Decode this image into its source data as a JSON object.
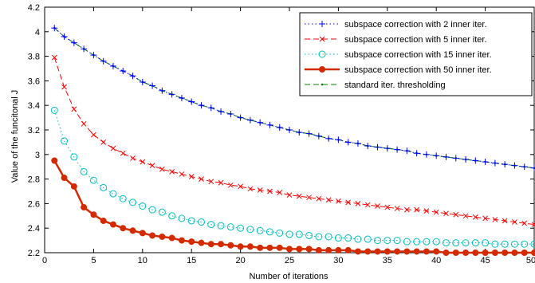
{
  "chart_data": {
    "type": "line",
    "xlabel": "Number of iterations",
    "ylabel": "Value of the funcitonal J",
    "xlim": [
      0,
      50
    ],
    "ylim": [
      2.2,
      4.2
    ],
    "xticks": [
      0,
      5,
      10,
      15,
      20,
      25,
      30,
      35,
      40,
      45,
      50
    ],
    "yticks": [
      2.2,
      2.4,
      2.6,
      2.8,
      3,
      3.2,
      3.4,
      3.6,
      3.8,
      4,
      4.2
    ],
    "grid": false,
    "legend_position": "top-right",
    "x": [
      1,
      2,
      3,
      4,
      5,
      6,
      7,
      8,
      9,
      10,
      11,
      12,
      13,
      14,
      15,
      16,
      17,
      18,
      19,
      20,
      21,
      22,
      23,
      24,
      25,
      26,
      27,
      28,
      29,
      30,
      31,
      32,
      33,
      34,
      35,
      36,
      37,
      38,
      39,
      40,
      41,
      42,
      43,
      44,
      45,
      46,
      47,
      48,
      49,
      50
    ],
    "series": [
      {
        "name": "subspace correction with 2 inner iter.",
        "color": "#0000ff",
        "line_style": "dotted",
        "marker": "plus",
        "values": [
          4.03,
          3.96,
          3.91,
          3.86,
          3.81,
          3.76,
          3.72,
          3.68,
          3.64,
          3.59,
          3.56,
          3.52,
          3.49,
          3.46,
          3.43,
          3.4,
          3.38,
          3.35,
          3.33,
          3.3,
          3.28,
          3.26,
          3.24,
          3.22,
          3.2,
          3.18,
          3.17,
          3.15,
          3.13,
          3.12,
          3.1,
          3.09,
          3.07,
          3.06,
          3.05,
          3.04,
          3.03,
          3.01,
          3.0,
          2.99,
          2.98,
          2.97,
          2.96,
          2.95,
          2.94,
          2.93,
          2.92,
          2.91,
          2.9,
          2.89
        ]
      },
      {
        "name": "subspace correction with 5 inner iter.",
        "color": "#ff0000",
        "line_style": "dashed",
        "marker": "x",
        "values": [
          3.79,
          3.55,
          3.37,
          3.25,
          3.16,
          3.1,
          3.05,
          3.01,
          2.97,
          2.94,
          2.91,
          2.88,
          2.86,
          2.84,
          2.82,
          2.8,
          2.78,
          2.77,
          2.75,
          2.74,
          2.72,
          2.71,
          2.7,
          2.69,
          2.67,
          2.66,
          2.65,
          2.64,
          2.63,
          2.62,
          2.61,
          2.6,
          2.59,
          2.58,
          2.57,
          2.56,
          2.55,
          2.55,
          2.54,
          2.53,
          2.52,
          2.51,
          2.5,
          2.49,
          2.48,
          2.47,
          2.46,
          2.45,
          2.44,
          2.43
        ]
      },
      {
        "name": "subspace correction with 15 inner iter.",
        "color": "#00bfbf",
        "line_style": "dotted",
        "marker": "circle",
        "values": [
          3.36,
          3.11,
          2.98,
          2.86,
          2.79,
          2.73,
          2.68,
          2.64,
          2.61,
          2.58,
          2.55,
          2.53,
          2.5,
          2.48,
          2.46,
          2.45,
          2.43,
          2.42,
          2.41,
          2.4,
          2.39,
          2.38,
          2.37,
          2.36,
          2.35,
          2.35,
          2.34,
          2.33,
          2.33,
          2.32,
          2.32,
          2.31,
          2.31,
          2.3,
          2.3,
          2.3,
          2.29,
          2.29,
          2.29,
          2.29,
          2.28,
          2.28,
          2.28,
          2.28,
          2.28,
          2.27,
          2.27,
          2.27,
          2.27,
          2.27
        ]
      },
      {
        "name": "subspace correction with 50 inner iter.",
        "color": "#d42a00",
        "line_style": "solid",
        "marker": "filled-circle",
        "values": [
          2.95,
          2.81,
          2.74,
          2.57,
          2.51,
          2.46,
          2.43,
          2.4,
          2.38,
          2.36,
          2.34,
          2.33,
          2.32,
          2.3,
          2.29,
          2.28,
          2.27,
          2.27,
          2.26,
          2.25,
          2.25,
          2.24,
          2.24,
          2.24,
          2.23,
          2.23,
          2.23,
          2.22,
          2.22,
          2.22,
          2.22,
          2.21,
          2.21,
          2.21,
          2.21,
          2.21,
          2.21,
          2.21,
          2.21,
          2.21,
          2.2,
          2.2,
          2.2,
          2.2,
          2.2,
          2.2,
          2.2,
          2.2,
          2.2,
          2.2
        ]
      },
      {
        "name": "standard iter. thresholding",
        "color": "#008000",
        "line_style": "dashed",
        "marker": "dot",
        "values": [
          4.03,
          3.96,
          3.91,
          3.86,
          3.81,
          3.76,
          3.72,
          3.68,
          3.64,
          3.59,
          3.56,
          3.52,
          3.49,
          3.46,
          3.43,
          3.4,
          3.38,
          3.35,
          3.33,
          3.3,
          3.28,
          3.26,
          3.24,
          3.22,
          3.2,
          3.18,
          3.17,
          3.15,
          3.13,
          3.12,
          3.1,
          3.09,
          3.07,
          3.06,
          3.05,
          3.04,
          3.03,
          3.01,
          3.0,
          2.99,
          2.98,
          2.97,
          2.96,
          2.95,
          2.94,
          2.93,
          2.92,
          2.91,
          2.9,
          2.89
        ]
      }
    ]
  }
}
